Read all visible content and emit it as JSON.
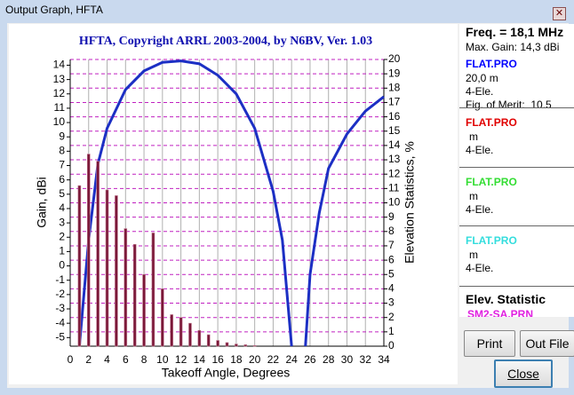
{
  "window": {
    "title": "Output Graph, HFTA"
  },
  "chart_data": {
    "type": "combo",
    "title": "HFTA, Copyright ARRL 2003-2004, by N6BV, Ver. 1.03",
    "xlabel": "Takeoff Angle, Degrees",
    "ylabel": "Gain, dBi",
    "y2label": "Elevation Statistics, %",
    "xlim": [
      0,
      34
    ],
    "xticks": [
      0,
      2,
      4,
      6,
      8,
      10,
      12,
      14,
      16,
      18,
      20,
      22,
      24,
      26,
      28,
      30,
      32,
      34
    ],
    "ylim": [
      -5.6,
      14.4
    ],
    "yticks": [
      -5,
      -4,
      -3,
      -2,
      -1,
      0,
      1,
      2,
      3,
      4,
      5,
      6,
      7,
      8,
      9,
      10,
      11,
      12,
      13,
      14
    ],
    "y2lim": [
      0,
      20
    ],
    "y2ticks": [
      0,
      1,
      2,
      3,
      4,
      5,
      6,
      7,
      8,
      9,
      10,
      11,
      12,
      13,
      14,
      15,
      16,
      17,
      18,
      19,
      20
    ],
    "grid": true,
    "series": [
      {
        "type": "line",
        "color": "#1c2fc4",
        "x": [
          1,
          1.5,
          2,
          3,
          4,
          6,
          8,
          10,
          12,
          14,
          16,
          18,
          20,
          22,
          23,
          24,
          24.8,
          25.5,
          26,
          27,
          28,
          30,
          32,
          34
        ],
        "values": [
          -5.6,
          -1.9,
          1.8,
          7.1,
          9.6,
          12.3,
          13.6,
          14.2,
          14.3,
          14.1,
          13.3,
          12.0,
          9.6,
          5.2,
          1.8,
          -5.6,
          null,
          -5.6,
          -0.6,
          3.7,
          6.8,
          9.2,
          10.8,
          11.8
        ]
      },
      {
        "type": "bar",
        "axis": "y2",
        "color": "#7a1838",
        "x": [
          1,
          2,
          3,
          4,
          5,
          6,
          7,
          8,
          9,
          10,
          11,
          12,
          13,
          14,
          15,
          16,
          17,
          18,
          19,
          20
        ],
        "values": [
          11.2,
          13.4,
          12.9,
          10.9,
          10.5,
          8.2,
          7.1,
          5.0,
          7.9,
          4.0,
          2.2,
          2.0,
          1.6,
          1.1,
          0.8,
          0.4,
          0.25,
          0.15,
          0.1,
          0.05
        ]
      }
    ]
  },
  "panel": {
    "freq": "Freq. = 18,1 MHz",
    "max_gain": "Max. Gain: 14,3 dBi",
    "files": [
      {
        "name": "FLAT.PRO",
        "color": "#0000ff",
        "lines": [
          "20,0 m",
          "4-Ele.",
          "Fig. of Merit:  10.5"
        ]
      },
      {
        "name": "FLAT.PRO",
        "color": "#e00000",
        "lines": [
          "m",
          "4-Ele."
        ]
      },
      {
        "name": "FLAT.PRO",
        "color": "#33dd33",
        "lines": [
          "m",
          "4-Ele."
        ]
      },
      {
        "name": "FLAT.PRO",
        "color": "#33dddd",
        "lines": [
          "m",
          "4-Ele."
        ]
      }
    ],
    "elev_title": "Elev. Statistic",
    "elev_file": "SM2-SA.PRN",
    "elev_color": "#e020e0"
  },
  "buttons": {
    "print": "Print",
    "out_file": "Out File",
    "close": "Close"
  }
}
